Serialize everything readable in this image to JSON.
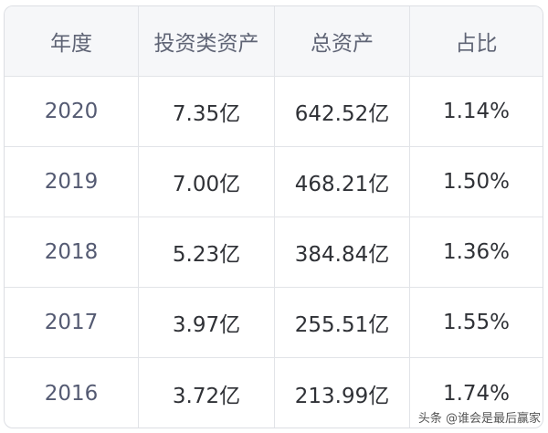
{
  "headers": [
    "年度",
    "投资类资产",
    "总资产",
    "占比"
  ],
  "rows": [
    [
      "2020",
      "7.35亿",
      "642.52亿",
      "1.14%"
    ],
    [
      "2019",
      "7.00亿",
      "468.21亿",
      "1.50%"
    ],
    [
      "2018",
      "5.23亿",
      "384.84亿",
      "1.36%"
    ],
    [
      "2017",
      "3.97亿",
      "255.51亿",
      "1.55%"
    ],
    [
      "2016",
      "3.72亿",
      "213.99亿",
      "1.74%"
    ]
  ],
  "watermark": "头条 @谁会是最后赢家"
}
